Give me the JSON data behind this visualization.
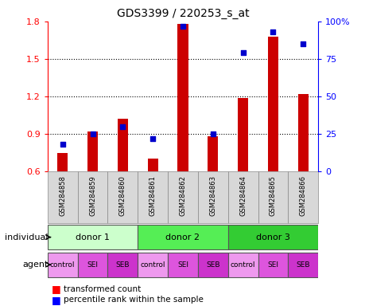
{
  "title": "GDS3399 / 220253_s_at",
  "samples": [
    "GSM284858",
    "GSM284859",
    "GSM284860",
    "GSM284861",
    "GSM284862",
    "GSM284863",
    "GSM284864",
    "GSM284865",
    "GSM284866"
  ],
  "transformed_count": [
    0.75,
    0.92,
    1.02,
    0.7,
    1.78,
    0.88,
    1.19,
    1.68,
    1.22
  ],
  "percentile_rank": [
    18,
    25,
    30,
    22,
    97,
    25,
    79,
    93,
    85
  ],
  "ylim_left": [
    0.6,
    1.8
  ],
  "ylim_right": [
    0,
    100
  ],
  "yticks_left": [
    0.6,
    0.9,
    1.2,
    1.5,
    1.8
  ],
  "yticks_right": [
    0,
    25,
    50,
    75,
    100
  ],
  "donors": [
    {
      "label": "donor 1",
      "start": 0,
      "end": 3,
      "color": "#ccffcc"
    },
    {
      "label": "donor 2",
      "start": 3,
      "end": 6,
      "color": "#55ee55"
    },
    {
      "label": "donor 3",
      "start": 6,
      "end": 9,
      "color": "#33cc33"
    }
  ],
  "agents": [
    "control",
    "SEI",
    "SEB",
    "control",
    "SEI",
    "SEB",
    "control",
    "SEI",
    "SEB"
  ],
  "agent_colors": [
    "#ee99ee",
    "#dd55dd",
    "#cc33cc",
    "#ee99ee",
    "#dd55dd",
    "#cc33cc",
    "#ee99ee",
    "#dd55dd",
    "#cc33cc"
  ],
  "bar_color": "#cc0000",
  "dot_color": "#0000cc",
  "bar_width": 0.35,
  "background_color": "#ffffff",
  "sample_bg_color": "#d8d8d8",
  "label_row1": "individual",
  "label_row2": "agent",
  "legend_items": [
    "transformed count",
    "percentile rank within the sample"
  ]
}
